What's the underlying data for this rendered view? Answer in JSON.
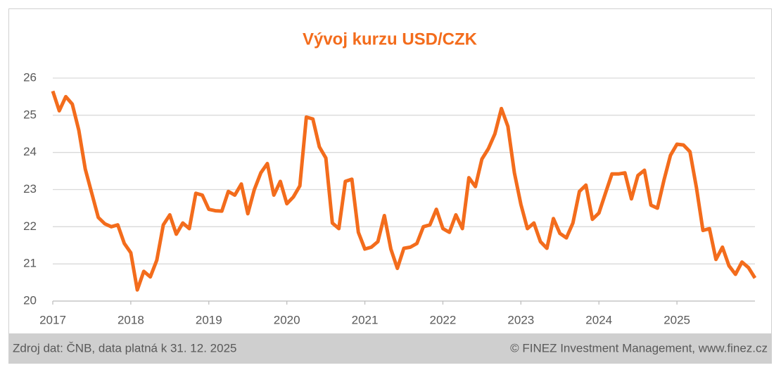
{
  "chart_data": {
    "type": "line",
    "title": "Vývoj kurzu USD/CZK",
    "x": [
      2017,
      2017.0833,
      2017.1667,
      2017.25,
      2017.3333,
      2017.4167,
      2017.5,
      2017.5833,
      2017.6667,
      2017.75,
      2017.8333,
      2017.9167,
      2018,
      2018.0833,
      2018.1667,
      2018.25,
      2018.3333,
      2018.4167,
      2018.5,
      2018.5833,
      2018.6667,
      2018.75,
      2018.8333,
      2018.9167,
      2019,
      2019.0833,
      2019.1667,
      2019.25,
      2019.3333,
      2019.4167,
      2019.5,
      2019.5833,
      2019.6667,
      2019.75,
      2019.8333,
      2019.9167,
      2020,
      2020.0833,
      2020.1667,
      2020.25,
      2020.3333,
      2020.4167,
      2020.5,
      2020.5833,
      2020.6667,
      2020.75,
      2020.8333,
      2020.9167,
      2021,
      2021.0833,
      2021.1667,
      2021.25,
      2021.3333,
      2021.4167,
      2021.5,
      2021.5833,
      2021.6667,
      2021.75,
      2021.8333,
      2021.9167,
      2022,
      2022.0833,
      2022.1667,
      2022.25,
      2022.3333,
      2022.4167,
      2022.5,
      2022.5833,
      2022.6667,
      2022.75,
      2022.8333,
      2022.9167,
      2023,
      2023.0833,
      2023.1667,
      2023.25,
      2023.3333,
      2023.4167,
      2023.5,
      2023.5833,
      2023.6667,
      2023.75,
      2023.8333,
      2023.9167,
      2024,
      2024.0833,
      2024.1667,
      2024.25,
      2024.3333,
      2024.4167,
      2024.5,
      2024.5833,
      2024.6667,
      2024.75,
      2024.8333,
      2024.9167,
      2025,
      2025.0833,
      2025.1667,
      2025.25,
      2025.3333,
      2025.4167,
      2025.5,
      2025.5833,
      2025.6667,
      2025.75,
      2025.8333,
      2025.9167,
      2026
    ],
    "series": [
      {
        "name": "USD/CZK",
        "color": "#f36c1c",
        "values": [
          25.65,
          25.12,
          25.5,
          25.3,
          24.6,
          23.55,
          22.9,
          22.25,
          22.08,
          22.0,
          22.05,
          21.55,
          21.3,
          20.3,
          20.8,
          20.65,
          21.1,
          22.05,
          22.32,
          21.8,
          22.1,
          21.95,
          22.9,
          22.85,
          22.47,
          22.43,
          22.42,
          22.95,
          22.85,
          23.15,
          22.35,
          23.0,
          23.45,
          23.7,
          22.85,
          23.22,
          22.62,
          22.8,
          23.1,
          24.95,
          24.9,
          24.15,
          23.85,
          22.1,
          21.95,
          23.22,
          23.28,
          21.85,
          21.4,
          21.45,
          21.6,
          22.3,
          21.4,
          20.88,
          21.42,
          21.45,
          21.55,
          22.0,
          22.05,
          22.47,
          21.95,
          21.85,
          22.32,
          21.95,
          23.32,
          23.08,
          23.82,
          24.1,
          24.5,
          25.18,
          24.7,
          23.45,
          22.6,
          21.95,
          22.1,
          21.6,
          21.42,
          22.22,
          21.82,
          21.7,
          22.1,
          22.95,
          23.12,
          22.2,
          22.37,
          22.9,
          23.42,
          23.42,
          23.45,
          22.75,
          23.38,
          23.52,
          22.58,
          22.5,
          23.25,
          23.92,
          24.22,
          24.2,
          24.02,
          23.05,
          21.9,
          21.95,
          21.12,
          21.45,
          20.95,
          20.72,
          21.05,
          20.9,
          20.62
        ]
      }
    ],
    "xlim": [
      2017,
      2026
    ],
    "xticks": [
      2017,
      2018,
      2019,
      2020,
      2021,
      2022,
      2023,
      2024,
      2025
    ],
    "ylim": [
      20,
      26
    ],
    "yticks": [
      20,
      21,
      22,
      23,
      24,
      25,
      26
    ],
    "grid": true
  },
  "footer": {
    "source": "Zdroj dat: ČNB, data platná k 31. 12. 2025",
    "copyright": "© FINEZ Investment Management, www.finez.cz"
  }
}
